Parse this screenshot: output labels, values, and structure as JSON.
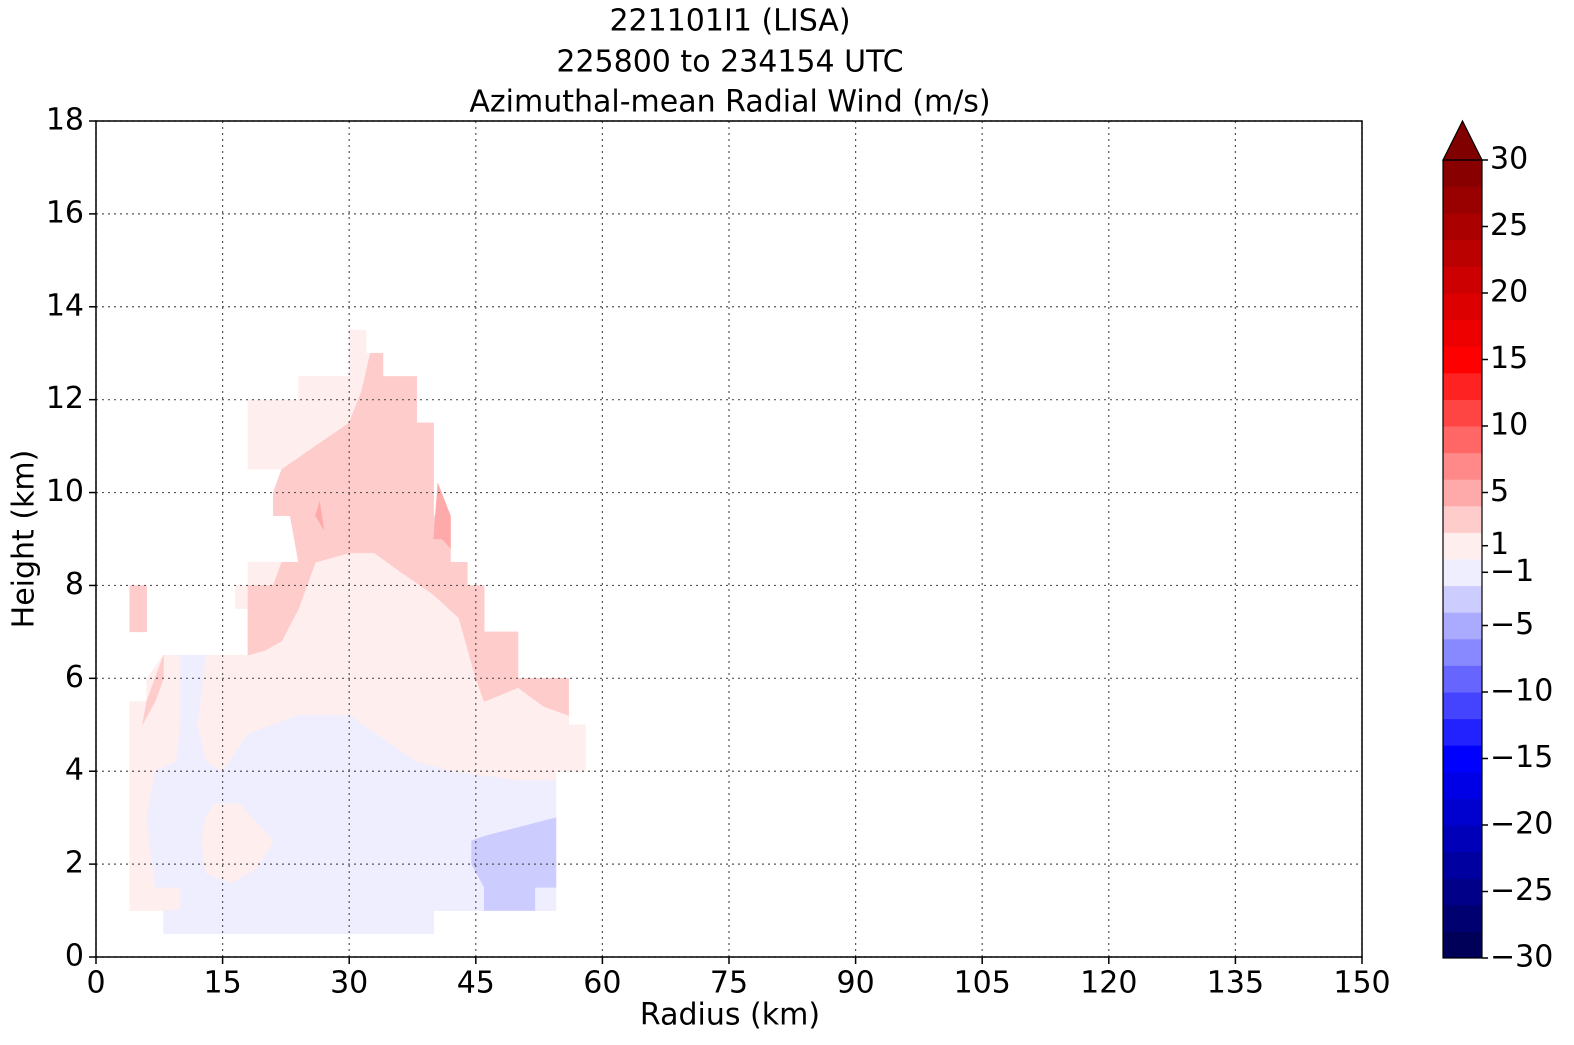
{
  "chart_data": {
    "type": "contourf",
    "title": [
      "221101I1 (LISA)",
      "225800 to 234154 UTC",
      "Azimuthal-mean Radial Wind (m/s)"
    ],
    "x_label": "Radius (km)",
    "y_label": "Height (km)",
    "xlim": [
      0,
      150
    ],
    "xticks": [
      0,
      15,
      30,
      45,
      60,
      75,
      90,
      105,
      120,
      135,
      150
    ],
    "ylim": [
      0,
      18
    ],
    "yticks": [
      0,
      2,
      4,
      6,
      8,
      10,
      12,
      14,
      16,
      18
    ],
    "grid": true,
    "colorbar": {
      "cmap": "seismic",
      "extend": "max",
      "levels": [
        -30,
        -28,
        -26,
        -24,
        -22,
        -20,
        -18,
        -16,
        -14,
        -12,
        -10,
        -8,
        -6,
        -4,
        -2,
        0,
        2,
        4,
        6,
        8,
        10,
        12,
        14,
        16,
        18,
        20,
        22,
        24,
        26,
        28,
        30
      ],
      "ticks": [
        30,
        25,
        20,
        15,
        10,
        5,
        1,
        {
          "value": -1,
          "label": "−1"
        },
        {
          "value": -5,
          "label": "−5"
        },
        {
          "value": -10,
          "label": "−10"
        },
        {
          "value": -15,
          "label": "−15"
        },
        {
          "value": -20,
          "label": "−20"
        },
        {
          "value": -25,
          "label": "−25"
        },
        {
          "value": -30,
          "label": "−30"
        }
      ]
    },
    "regions": [
      {
        "level": 0,
        "x": [
          4,
          4,
          6,
          6,
          8,
          18,
          18,
          16.5,
          16.5,
          18,
          18,
          24,
          24,
          22,
          22,
          18,
          18,
          24,
          24,
          30,
          30,
          32,
          32,
          34,
          34,
          38,
          38,
          40,
          40,
          42,
          42,
          44,
          44,
          46,
          46,
          50,
          50,
          56,
          56,
          58,
          58,
          54.5,
          54.5,
          46,
          46,
          40,
          40,
          8,
          8
        ],
        "y": [
          1,
          5.5,
          5.5,
          6,
          6.5,
          6.5,
          7.5,
          7.5,
          8,
          8,
          8.5,
          8.5,
          10,
          10,
          10.5,
          10.5,
          12,
          12,
          12.5,
          12.5,
          13.5,
          13.5,
          13,
          13,
          12.5,
          12.5,
          11.5,
          11.5,
          9.5,
          9.5,
          8.5,
          8.5,
          8,
          8,
          7,
          7,
          6,
          6,
          5,
          5,
          4,
          4,
          1,
          1,
          1,
          1,
          0.5,
          0.5,
          1
        ]
      },
      {
        "level": 2,
        "x": [
          4,
          4,
          6,
          6
        ],
        "y": [
          7,
          8,
          8,
          7
        ]
      },
      {
        "level": -2,
        "x": [
          8,
          40,
          40,
          54.5,
          54.5,
          50,
          46,
          42,
          38,
          34,
          30,
          24,
          18,
          15,
          13,
          12,
          13,
          10,
          10,
          9.5,
          7,
          6,
          7,
          10,
          10,
          8
        ],
        "y": [
          0.5,
          0.5,
          1,
          1,
          3.8,
          3.8,
          3.9,
          4,
          4.2,
          4.7,
          5.2,
          5.2,
          4.8,
          4,
          4.2,
          5,
          6.5,
          6.5,
          5,
          4.2,
          4,
          3,
          1.5,
          1.5,
          1,
          1
        ]
      },
      {
        "level": 0,
        "x": [
          13,
          14,
          17,
          21,
          19,
          16,
          13,
          12.5
        ],
        "y": [
          3,
          3.3,
          3.3,
          2.5,
          1.9,
          1.6,
          1.8,
          2.5
        ]
      },
      {
        "level": -4,
        "x": [
          44.5,
          46,
          54.5,
          54.5,
          52,
          52,
          46,
          46,
          44.5
        ],
        "y": [
          2.5,
          2.6,
          3,
          1.5,
          1.5,
          1,
          1,
          1.5,
          2
        ]
      },
      {
        "level": 2,
        "x": [
          5.5,
          6,
          8,
          8,
          7
        ],
        "y": [
          5,
          5.5,
          6.5,
          6,
          5.5
        ]
      },
      {
        "level": 2,
        "x": [
          18,
          20,
          22,
          24,
          26,
          30,
          33,
          36,
          40,
          43,
          45,
          46,
          50,
          53,
          56,
          56,
          50,
          50,
          46,
          46,
          44,
          44,
          42,
          42,
          40,
          40,
          38,
          38,
          34,
          34,
          32.5,
          31.5,
          30,
          26,
          22,
          21,
          21,
          23,
          24,
          22,
          21,
          18
        ],
        "y": [
          6.5,
          6.6,
          6.8,
          7.5,
          8.5,
          8.7,
          8.7,
          8.3,
          7.8,
          7.3,
          6,
          5.5,
          5.8,
          5.4,
          5.2,
          6,
          6,
          7,
          7,
          8,
          8,
          8.5,
          8.5,
          9.5,
          9.5,
          11.5,
          11.5,
          12.5,
          12.5,
          13,
          13,
          12.2,
          11.5,
          11,
          10.5,
          10,
          9.5,
          9.5,
          8.5,
          8.5,
          8,
          8
        ]
      },
      {
        "level": 4,
        "x": [
          40,
          40.5,
          42,
          42,
          41
        ],
        "y": [
          9,
          10.2,
          9.5,
          8.8,
          9
        ]
      },
      {
        "level": 4,
        "x": [
          26,
          27,
          26.5
        ],
        "y": [
          9.5,
          9.2,
          9.8
        ]
      }
    ]
  }
}
